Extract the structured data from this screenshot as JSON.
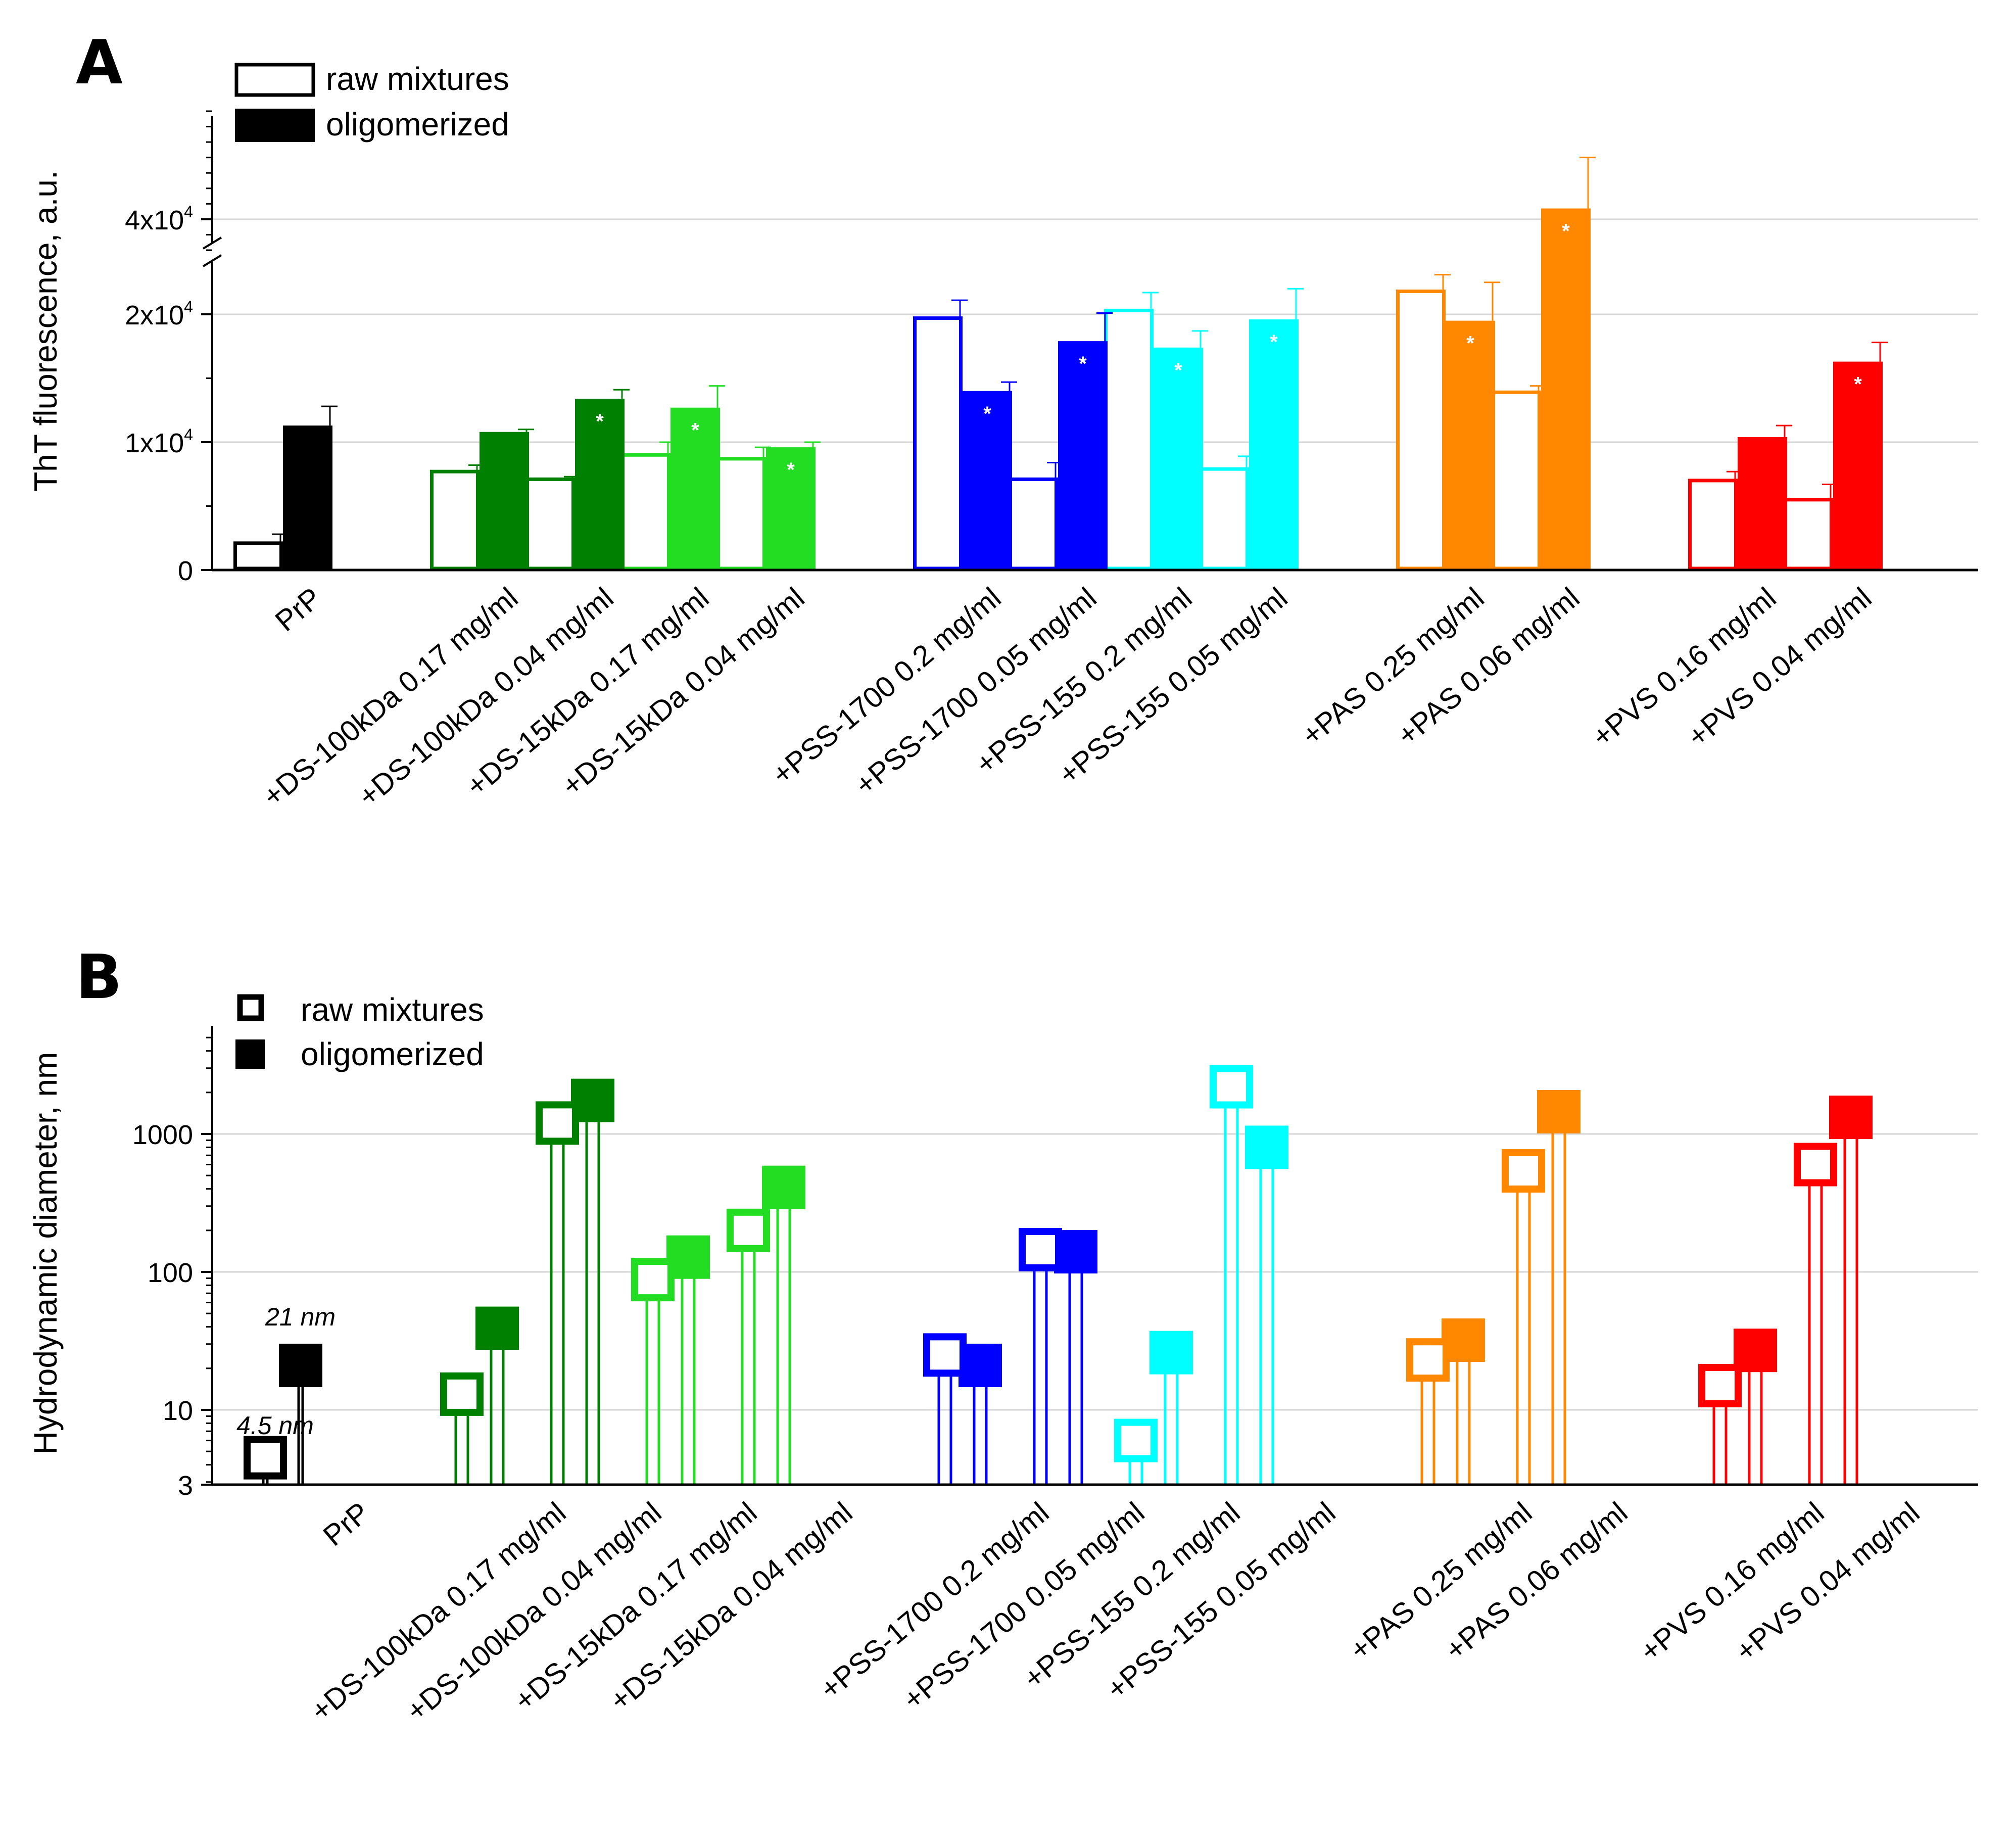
{
  "chart_data": [
    {
      "type": "bar",
      "panel": "A",
      "title": "",
      "ylabel": "ThT fluorescence, a.u.",
      "xlabel": "",
      "axis_break": true,
      "ylim_lower": [
        0,
        25000
      ],
      "ylim_upper": [
        38000,
        47000
      ],
      "yticks": [
        {
          "value": 0,
          "label": "0",
          "exp": ""
        },
        {
          "value": 10000,
          "label": "1x10",
          "exp": "4"
        },
        {
          "value": 20000,
          "label": "2x10",
          "exp": "4"
        },
        {
          "value": 40000,
          "label": "4x10",
          "exp": "4"
        }
      ],
      "grid": true,
      "legend": {
        "position": "top-left",
        "items": [
          {
            "label": "raw mixtures",
            "style": "hollow"
          },
          {
            "label": "oligomerized",
            "style": "filled"
          }
        ]
      },
      "significance_marker": "*",
      "categories": [
        "PrP",
        "+DS-100kDa  0.17 mg/ml",
        "+DS-100kDa  0.04 mg/ml",
        "+DS-15kDa  0.17 mg/ml",
        "+DS-15kDa  0.04 mg/ml",
        "+PSS-1700  0.2 mg/ml",
        "+PSS-1700  0.05 mg/ml",
        "+PSS-155  0.2 mg/ml",
        "+PSS-155  0.05 mg/ml",
        "+PAS  0.25 mg/ml",
        "+PAS  0.06 mg/ml",
        "+PVS  0.16 mg/ml",
        "+PVS  0.04 mg/ml"
      ],
      "groups": [
        0,
        1,
        1,
        1,
        1,
        2,
        2,
        2,
        2,
        3,
        3,
        4,
        4
      ],
      "colors": [
        "#000000",
        "#008000",
        "#008000",
        "#22dd22",
        "#22dd22",
        "#0000ff",
        "#0000ff",
        "#00ffff",
        "#00ffff",
        "#ff8800",
        "#ff8800",
        "#ff0000",
        "#ff0000"
      ],
      "series": [
        {
          "name": "raw mixtures",
          "values": [
            2100,
            7700,
            7100,
            9000,
            8700,
            19700,
            7100,
            20300,
            7900,
            21800,
            13900,
            7000,
            5500
          ],
          "errors": [
            700,
            500,
            200,
            1000,
            900,
            1400,
            1300,
            1400,
            1000,
            1300,
            500,
            700,
            1200
          ]
        },
        {
          "name": "oligomerized",
          "values": [
            11300,
            10800,
            13400,
            12700,
            9600,
            14000,
            17900,
            17400,
            19600,
            19500,
            40700,
            10400,
            16300
          ],
          "errors": [
            1500,
            200,
            700,
            1700,
            400,
            700,
            2200,
            1300,
            2400,
            3000,
            3300,
            900,
            1500
          ],
          "significant": [
            false,
            false,
            true,
            true,
            true,
            true,
            true,
            true,
            true,
            true,
            true,
            false,
            true
          ]
        }
      ]
    },
    {
      "type": "scatter",
      "panel": "B",
      "title": "",
      "ylabel": "Hydrodynamic diameter, nm",
      "xlabel": "",
      "yscale": "log",
      "ylim": [
        3,
        5500
      ],
      "yticks": [
        {
          "value": 3,
          "label": "3"
        },
        {
          "value": 10,
          "label": "10"
        },
        {
          "value": 100,
          "label": "100"
        },
        {
          "value": 1000,
          "label": "1000"
        }
      ],
      "grid": true,
      "legend": {
        "position": "top-left",
        "items": [
          {
            "label": "raw mixtures",
            "style": "hollow"
          },
          {
            "label": "oligomerized",
            "style": "filled"
          }
        ]
      },
      "annotations": [
        {
          "text": "21 nm",
          "y": 21
        },
        {
          "text": "4.5 nm",
          "y": 4.5
        }
      ],
      "categories": [
        "PrP",
        "+DS-100kDa  0.17 mg/ml",
        "+DS-100kDa  0.04 mg/ml",
        "+DS-15kDa  0.17 mg/ml",
        "+DS-15kDa  0.04 mg/ml",
        "+PSS-1700  0.2 mg/ml",
        "+PSS-1700  0.05 mg/ml",
        "+PSS-155  0.2 mg/ml",
        "+PSS-155  0.05 mg/ml",
        "+PAS  0.25 mg/ml",
        "+PAS  0.06 mg/ml",
        "+PVS  0.16 mg/ml",
        "+PVS  0.04 mg/ml"
      ],
      "series": [
        {
          "name": "raw mixtures",
          "values": [
            4.5,
            13,
            1200,
            88,
            200,
            25,
            145,
            6,
            2200,
            23,
            540,
            15,
            600
          ]
        },
        {
          "name": "oligomerized",
          "values": [
            21,
            39,
            1750,
            128,
            410,
            21,
            140,
            26,
            800,
            32,
            1450,
            27,
            1320
          ]
        }
      ]
    }
  ],
  "panels": {
    "a_letter": "A",
    "b_letter": "B"
  }
}
